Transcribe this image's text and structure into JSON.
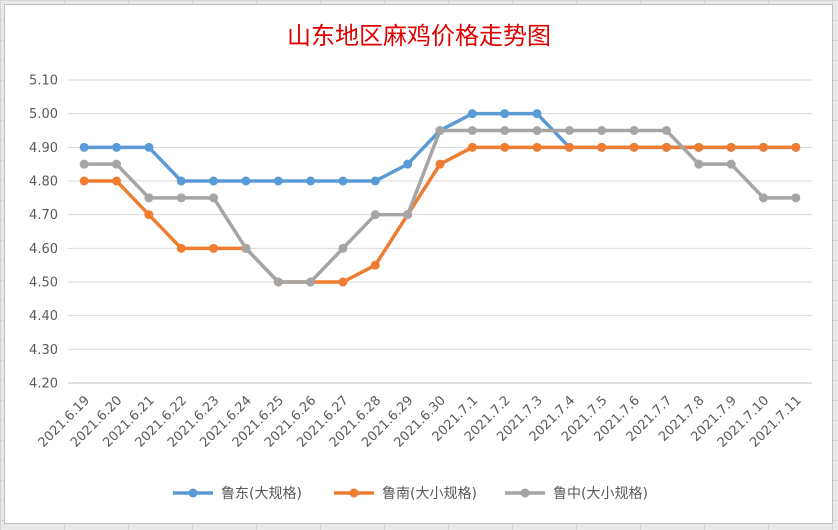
{
  "colors": {
    "title": "#e00000",
    "grid": "#d9d9d9",
    "axis": "#bfbfbf"
  },
  "chart_data": {
    "type": "line",
    "title": "山东地区麻鸡价格走势图",
    "xlabel": "",
    "ylabel": "",
    "ylim": [
      4.2,
      5.1
    ],
    "yticks": [
      "4.20",
      "4.30",
      "4.40",
      "4.50",
      "4.60",
      "4.70",
      "4.80",
      "4.90",
      "5.00",
      "5.10"
    ],
    "grid": "horizontal",
    "legend_position": "bottom",
    "categories": [
      "2021.6.19",
      "2021.6.20",
      "2021.6.21",
      "2021.6.22",
      "2021.6.23",
      "2021.6.24",
      "2021.6.25",
      "2021.6.26",
      "2021.6.27",
      "2021.6.28",
      "2021.6.29",
      "2021.6.30",
      "2021.7.1",
      "2021.7.2",
      "2021.7.3",
      "2021.7.4",
      "2021.7.5",
      "2021.7.6",
      "2021.7.7",
      "2021.7.8",
      "2021.7.9",
      "2021.7.10",
      "2021.7.11"
    ],
    "series": [
      {
        "name": "鲁东(大规格)",
        "color": "#5b9bd5",
        "values": [
          4.9,
          4.9,
          4.9,
          4.8,
          4.8,
          4.8,
          4.8,
          4.8,
          4.8,
          4.8,
          4.85,
          4.95,
          5.0,
          5.0,
          5.0,
          4.9,
          4.9,
          4.9,
          4.9,
          4.9,
          4.9,
          4.9,
          4.9
        ]
      },
      {
        "name": "鲁南(大小规格)",
        "color": "#ed7d31",
        "values": [
          4.8,
          4.8,
          4.7,
          4.6,
          4.6,
          4.6,
          4.5,
          4.5,
          4.5,
          4.55,
          4.7,
          4.85,
          4.9,
          4.9,
          4.9,
          4.9,
          4.9,
          4.9,
          4.9,
          4.9,
          4.9,
          4.9,
          4.9
        ]
      },
      {
        "name": "鲁中(大小规格)",
        "color": "#a5a5a5",
        "values": [
          4.85,
          4.85,
          4.75,
          4.75,
          4.75,
          4.6,
          4.5,
          4.5,
          4.6,
          4.7,
          4.7,
          4.95,
          4.95,
          4.95,
          4.95,
          4.95,
          4.95,
          4.95,
          4.95,
          4.85,
          4.85,
          4.75,
          4.75
        ]
      }
    ]
  }
}
